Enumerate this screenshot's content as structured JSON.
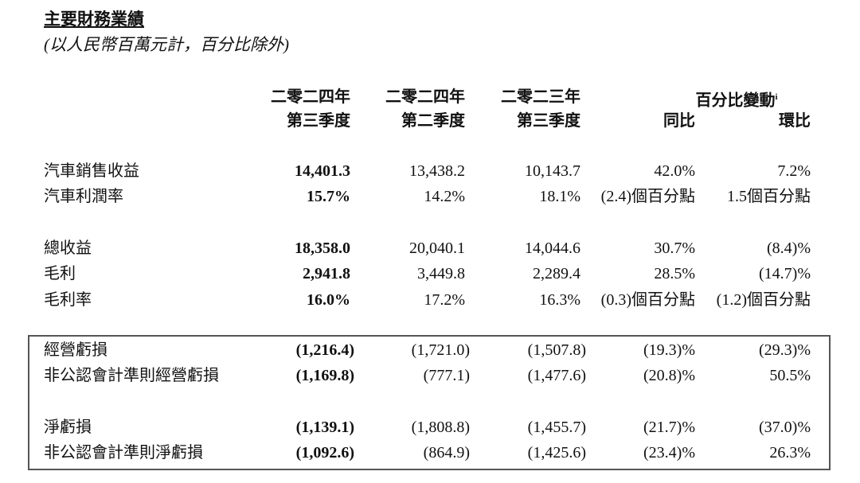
{
  "title": "主要財務業績",
  "subtitle": "(以人民幣百萬元計，百分比除外)",
  "columns": [
    {
      "line1": "二零二四年",
      "line2": "第三季度"
    },
    {
      "line1": "二零二四年",
      "line2": "第二季度"
    },
    {
      "line1": "二零二三年",
      "line2": "第三季度"
    }
  ],
  "change_group": {
    "label": "百分比變動",
    "footnote": "i",
    "yoy": "同比",
    "qoq": "環比"
  },
  "rows": [
    {
      "label": "汽車銷售收益",
      "values": [
        "14,401.3",
        "13,438.2",
        "10,143.7",
        "42.0%",
        "7.2%"
      ]
    },
    {
      "label": "汽車利潤率",
      "values": [
        "15.7%",
        "14.2%",
        "18.1%",
        "(2.4)個百分點",
        "1.5個百分點"
      ]
    },
    {
      "label": "總收益",
      "values": [
        "18,358.0",
        "20,040.1",
        "14,044.6",
        "30.7%",
        "(8.4)%"
      ]
    },
    {
      "label": "毛利",
      "values": [
        "2,941.8",
        "3,449.8",
        "2,289.4",
        "28.5%",
        "(14.7)%"
      ]
    },
    {
      "label": "毛利率",
      "values": [
        "16.0%",
        "17.2%",
        "16.3%",
        "(0.3)個百分點",
        "(1.2)個百分點"
      ]
    },
    {
      "label": "經營虧損",
      "values": [
        "(1,216.4)",
        "(1,721.0)",
        "(1,507.8)",
        "(19.3)%",
        "(29.3)%"
      ]
    },
    {
      "label": "非公認會計準則經營虧損",
      "values": [
        "(1,169.8)",
        "(777.1)",
        "(1,477.6)",
        "(20.8)%",
        "50.5%"
      ]
    },
    {
      "label": "淨虧損",
      "values": [
        "(1,139.1)",
        "(1,808.8)",
        "(1,455.7)",
        "(21.7)%",
        "(37.0)%"
      ]
    },
    {
      "label": "非公認會計準則淨虧損",
      "values": [
        "(1,092.6)",
        "(864.9)",
        "(1,425.6)",
        "(23.4)%",
        "26.3%"
      ]
    }
  ]
}
